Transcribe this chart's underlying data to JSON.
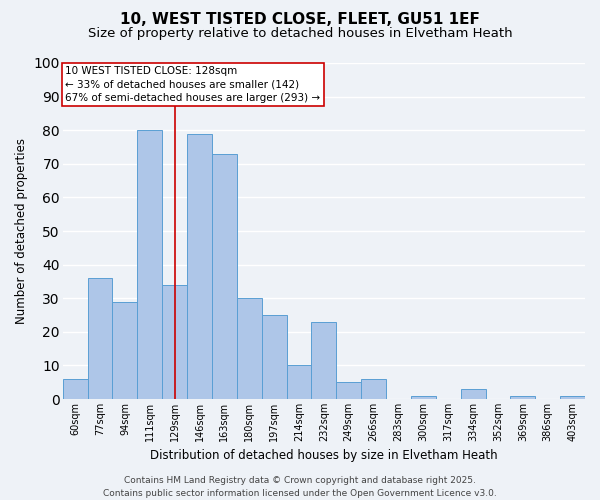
{
  "title1": "10, WEST TISTED CLOSE, FLEET, GU51 1EF",
  "title2": "Size of property relative to detached houses in Elvetham Heath",
  "xlabel": "Distribution of detached houses by size in Elvetham Heath",
  "ylabel": "Number of detached properties",
  "categories": [
    "60sqm",
    "77sqm",
    "94sqm",
    "111sqm",
    "129sqm",
    "146sqm",
    "163sqm",
    "180sqm",
    "197sqm",
    "214sqm",
    "232sqm",
    "249sqm",
    "266sqm",
    "283sqm",
    "300sqm",
    "317sqm",
    "334sqm",
    "352sqm",
    "369sqm",
    "386sqm",
    "403sqm"
  ],
  "values": [
    6,
    36,
    29,
    80,
    34,
    79,
    73,
    30,
    25,
    10,
    23,
    5,
    6,
    0,
    1,
    0,
    3,
    0,
    1,
    0,
    1
  ],
  "bar_color": "#aec6e8",
  "bar_edge_color": "#5a9fd4",
  "vline_index": 4,
  "vline_color": "#cc0000",
  "annotation_line1": "10 WEST TISTED CLOSE: 128sqm",
  "annotation_line2": "← 33% of detached houses are smaller (142)",
  "annotation_line3": "67% of semi-detached houses are larger (293) →",
  "annotation_box_color": "#ffffff",
  "annotation_box_edge_color": "#cc0000",
  "ylim": [
    0,
    100
  ],
  "background_color": "#eef2f7",
  "footer1": "Contains HM Land Registry data © Crown copyright and database right 2025.",
  "footer2": "Contains public sector information licensed under the Open Government Licence v3.0.",
  "title_fontsize": 11,
  "subtitle_fontsize": 9.5,
  "ylabel_fontsize": 8.5,
  "xlabel_fontsize": 8.5,
  "tick_fontsize": 7,
  "footer_fontsize": 6.5,
  "annotation_fontsize": 7.5
}
